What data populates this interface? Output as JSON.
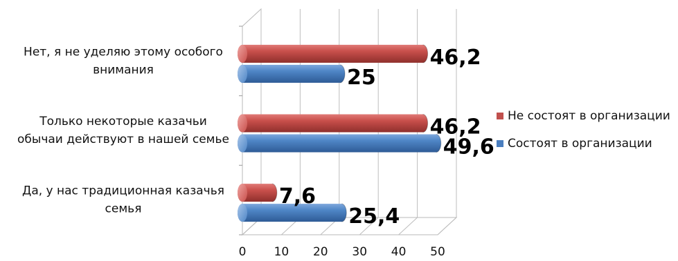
{
  "chart_data": {
    "type": "bar",
    "orientation": "horizontal",
    "style": "3d-cylinder",
    "categories": [
      [
        "Да, у нас традиционная казачья",
        "семья"
      ],
      [
        "Только некоторые казачьи",
        "обычаи действуют в нашей семье"
      ],
      [
        "Нет, я не уделяю этому особого",
        "внимания"
      ]
    ],
    "series": [
      {
        "name": "Состоят в организации",
        "values": [
          25.4,
          49.6,
          25
        ],
        "labels": [
          "25,4",
          "49,6",
          "25"
        ],
        "color": "#4a7ebf"
      },
      {
        "name": "Не состоят в организации",
        "values": [
          7.6,
          46.2,
          46.2
        ],
        "labels": [
          "7,6",
          "46,2",
          "46,2"
        ],
        "color": "#c0504d"
      }
    ],
    "xlim": [
      0,
      50
    ],
    "xticks": [
      "0",
      "10",
      "20",
      "30",
      "40",
      "50"
    ],
    "grid": true,
    "legend_position": "right"
  }
}
